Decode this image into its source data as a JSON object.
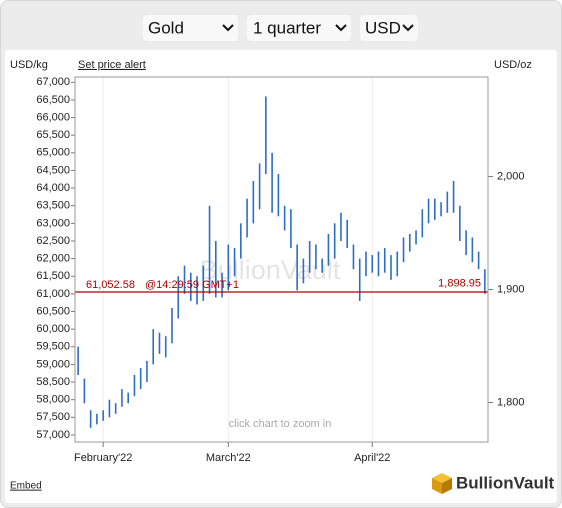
{
  "controls": {
    "metal": "Gold",
    "period": "1 quarter",
    "currency": "USD"
  },
  "chart_data": {
    "type": "hilo",
    "left_unit": "USD/kg",
    "price_alert": "Set price alert",
    "right_unit": "USD/oz",
    "categories": [
      null,
      null,
      null,
      null,
      "February'22",
      null,
      null,
      null,
      null,
      null,
      null,
      null,
      null,
      null,
      null,
      null,
      null,
      null,
      null,
      null,
      null,
      null,
      null,
      null,
      "March'22",
      null,
      null,
      null,
      null,
      null,
      null,
      null,
      null,
      null,
      null,
      null,
      null,
      null,
      null,
      null,
      null,
      null,
      null,
      null,
      null,
      null,
      null,
      "April'22",
      null,
      null,
      null,
      null,
      null,
      null,
      null,
      null,
      null,
      null,
      null,
      null,
      null,
      null,
      null,
      null,
      null,
      null
    ],
    "highs": [
      59500,
      58600,
      57700,
      57600,
      57700,
      58000,
      57900,
      58300,
      58200,
      58700,
      58900,
      59100,
      60000,
      59900,
      59800,
      60600,
      61500,
      61800,
      61600,
      61500,
      61800,
      63500,
      62500,
      61600,
      62400,
      62300,
      63000,
      63700,
      64200,
      64700,
      66600,
      65000,
      64400,
      63500,
      63400,
      62400,
      62000,
      62500,
      62400,
      62000,
      62700,
      63000,
      63300,
      63100,
      62400,
      62000,
      62200,
      62100,
      62200,
      62300,
      62100,
      62200,
      62600,
      62700,
      62800,
      63400,
      63700,
      63700,
      63600,
      63900,
      64200,
      63500,
      62800,
      62600,
      62200,
      61700
    ],
    "lows": [
      58700,
      57900,
      57200,
      57300,
      57400,
      57500,
      57600,
      57800,
      57900,
      58100,
      58300,
      58500,
      59000,
      59300,
      59200,
      59600,
      60300,
      61000,
      60800,
      60700,
      60800,
      61000,
      60900,
      60900,
      61100,
      61500,
      62000,
      62600,
      63000,
      63400,
      64400,
      63300,
      63200,
      62800,
      62300,
      61100,
      61300,
      61600,
      61700,
      61600,
      61800,
      62000,
      62500,
      62300,
      61700,
      60800,
      61500,
      61600,
      61500,
      61600,
      61400,
      61500,
      61900,
      62200,
      62400,
      62600,
      63000,
      63100,
      63200,
      63300,
      63300,
      62500,
      62100,
      61900,
      61700,
      61000
    ],
    "color": "#2d6cc7",
    "ylim": [
      56800,
      67150
    ],
    "yticks": [
      {
        "value": 57000,
        "label": "57,000"
      },
      {
        "value": 57500,
        "label": "57,500"
      },
      {
        "value": 58000,
        "label": "58,000"
      },
      {
        "value": 58500,
        "label": "58,500"
      },
      {
        "value": 59000,
        "label": "59,000"
      },
      {
        "value": 59500,
        "label": "59,500"
      },
      {
        "value": 60000,
        "label": "60,000"
      },
      {
        "value": 60500,
        "label": "60,500"
      },
      {
        "value": 61000,
        "label": "61,000"
      },
      {
        "value": 61500,
        "label": "61,500"
      },
      {
        "value": 62000,
        "label": "62,000"
      },
      {
        "value": 62500,
        "label": "62,500"
      },
      {
        "value": 63000,
        "label": "63,000"
      },
      {
        "value": 63500,
        "label": "63,500"
      },
      {
        "value": 64000,
        "label": "64,000"
      },
      {
        "value": 64500,
        "label": "64,500"
      },
      {
        "value": 65000,
        "label": "65,000"
      },
      {
        "value": 65500,
        "label": "65,500"
      },
      {
        "value": 66000,
        "label": "66,000"
      },
      {
        "value": 66500,
        "label": "66,500"
      },
      {
        "value": 67000,
        "label": "67,000"
      }
    ],
    "y2lim": [
      1765,
      2088
    ],
    "y2ticks": [
      {
        "value": 1800,
        "label": "1,800"
      },
      {
        "value": 1900,
        "label": "1,900"
      },
      {
        "value": 2000,
        "label": "2,000"
      }
    ],
    "current": {
      "value": 61052.58,
      "label": "61,052.58"
    },
    "current_time": "@14:29:59 GMT+1",
    "current_y2": {
      "value": 1898.95,
      "label": "1,898.95"
    },
    "line_color": "#b00000",
    "watermark": "BullionVault",
    "hint": "click chart to zoom in"
  },
  "footer": {
    "embed": "Embed",
    "brand": "BullionVault"
  }
}
